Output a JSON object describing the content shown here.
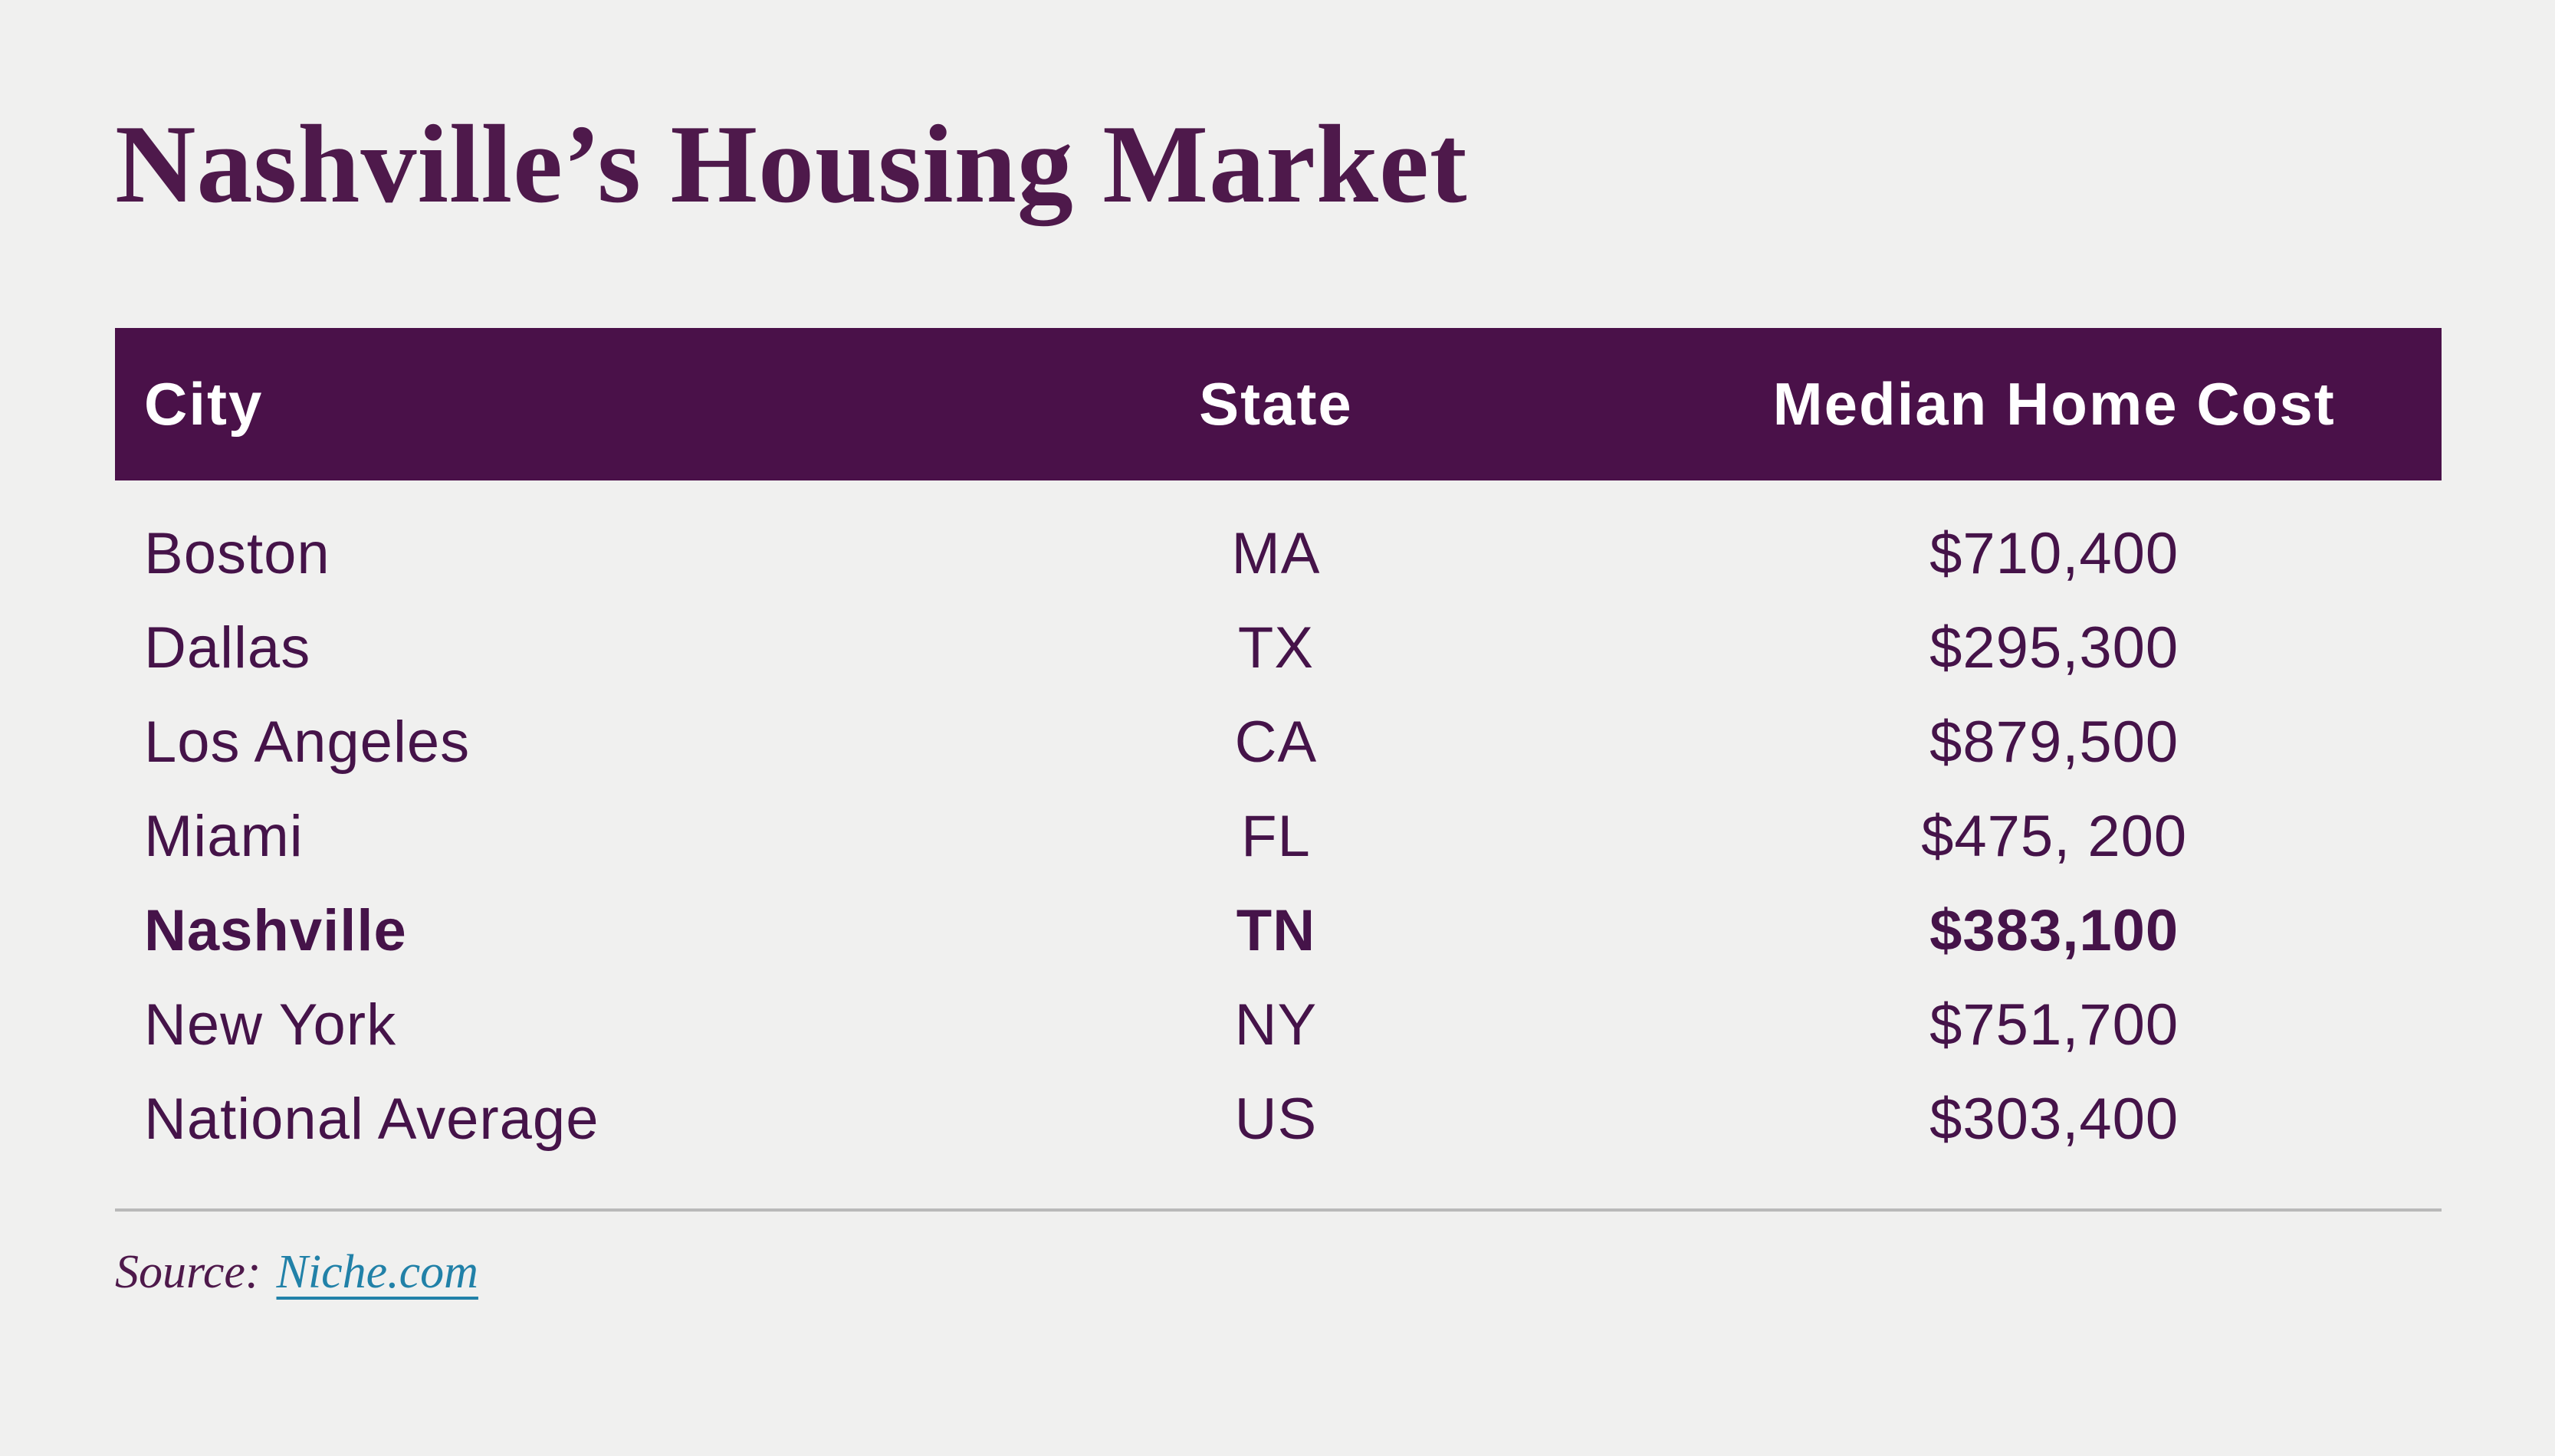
{
  "title": "Nashville’s Housing Market",
  "table": {
    "headers": {
      "city": "City",
      "state": "State",
      "cost": "Median Home Cost"
    },
    "rows": [
      {
        "city": "Boston",
        "state": "MA",
        "cost": "$710,400",
        "highlight": false
      },
      {
        "city": "Dallas",
        "state": "TX",
        "cost": "$295,300",
        "highlight": false
      },
      {
        "city": "Los Angeles",
        "state": "CA",
        "cost": "$879,500",
        "highlight": false
      },
      {
        "city": "Miami",
        "state": "FL",
        "cost": "$475, 200",
        "highlight": false
      },
      {
        "city": "Nashville",
        "state": "TN",
        "cost": "$383,100",
        "highlight": true
      },
      {
        "city": "New York",
        "state": "NY",
        "cost": "$751,700",
        "highlight": false
      },
      {
        "city": "National Average",
        "state": "US",
        "cost": "$303,400",
        "highlight": false
      }
    ]
  },
  "source": {
    "label": "Source:",
    "link_text": "Niche.com"
  },
  "colors": {
    "background": "#f0f0ef",
    "title_text": "#4e194b",
    "header_bg": "#4a1149",
    "header_text": "#ffffff",
    "row_text": "#451349",
    "link": "#2181a8",
    "divider": "#b9b9b9"
  },
  "chart_data": {
    "type": "table",
    "title": "Nashville’s Housing Market",
    "columns": [
      "City",
      "State",
      "Median Home Cost"
    ],
    "categories": [
      "Boston",
      "Dallas",
      "Los Angeles",
      "Miami",
      "Nashville",
      "New York",
      "National Average"
    ],
    "states": [
      "MA",
      "TX",
      "CA",
      "FL",
      "TN",
      "NY",
      "US"
    ],
    "values": [
      710400,
      295300,
      879500,
      475200,
      383100,
      751700,
      303400
    ],
    "highlighted_row": "Nashville",
    "source": "Niche.com"
  }
}
